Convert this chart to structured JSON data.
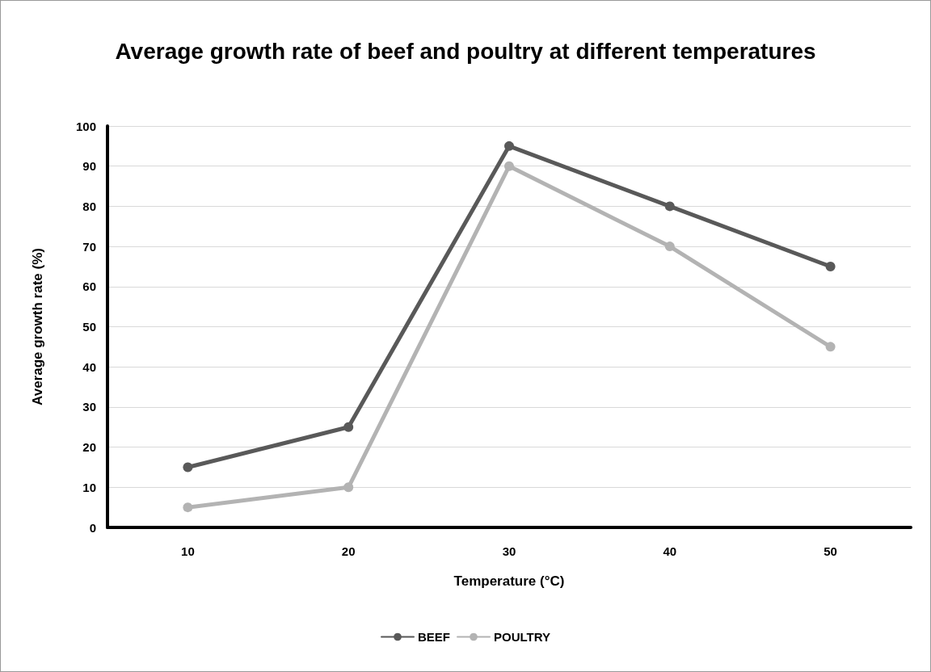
{
  "chart_data": {
    "type": "line",
    "title": "Average growth rate of beef and poultry at different temperatures",
    "xlabel": "Temperature (°C)",
    "ylabel": "Average growth rate (%)",
    "categories": [
      "10",
      "20",
      "30",
      "40",
      "50"
    ],
    "series": [
      {
        "name": "BEEF",
        "color": "#595959",
        "values": [
          15,
          25,
          95,
          80,
          65
        ]
      },
      {
        "name": "POULTRY",
        "color": "#b3b3b3",
        "values": [
          5,
          10,
          90,
          70,
          45
        ]
      }
    ],
    "ylim": [
      0,
      100
    ],
    "yticks": [
      0,
      10,
      20,
      30,
      40,
      50,
      60,
      70,
      80,
      90,
      100
    ],
    "grid": "y",
    "legend": "bottom",
    "marker": "circle",
    "line_style": "solid"
  }
}
